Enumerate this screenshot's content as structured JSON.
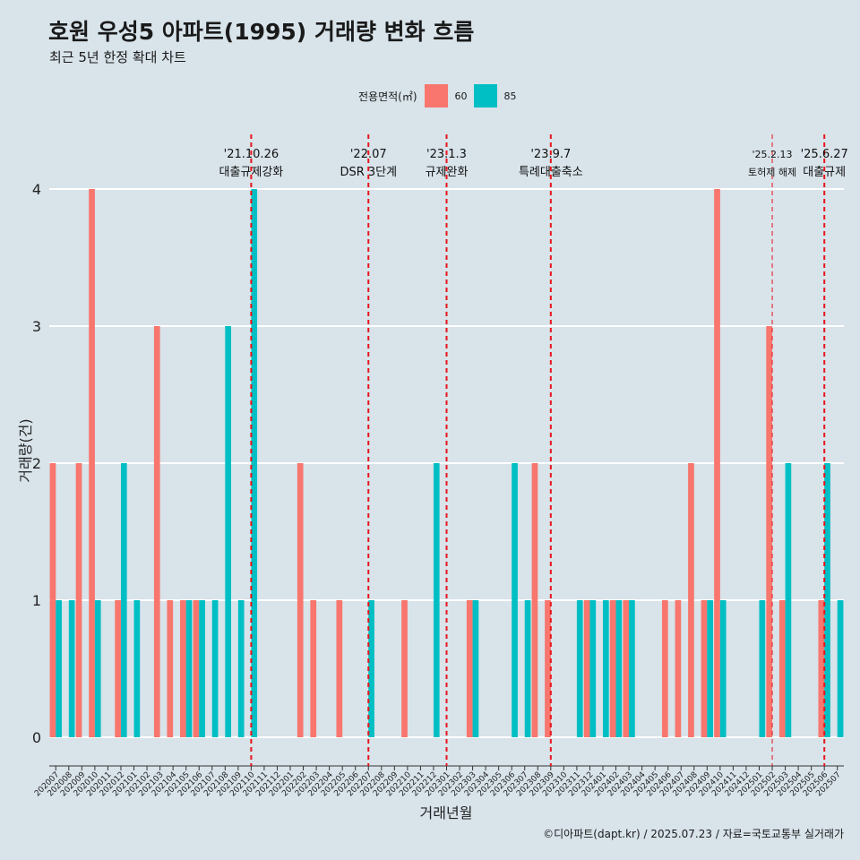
{
  "title": "호원 우성5 아파트(1995) 거래량 변화 흐름",
  "subtitle": "최근 5년 한정 확대 차트",
  "caption": "©디아파트(dapt.kr) / 2025.07.23 / 자료=국토교통부 실거래가",
  "legend": {
    "title": "전용면적(㎡)",
    "items": [
      {
        "label": "60",
        "color": "#f8766d"
      },
      {
        "label": "85",
        "color": "#00bfc4"
      }
    ]
  },
  "colors": {
    "background": "#d8e3ea",
    "grid": "#ffffff",
    "event_line": "#e8141a"
  },
  "chart_data": {
    "type": "bar",
    "xlabel": "거래년월",
    "ylabel": "거래량(건)",
    "ylim": [
      0,
      4
    ],
    "yticks": [
      0,
      1,
      2,
      3,
      4
    ],
    "categories": [
      "202007",
      "202008",
      "202009",
      "202010",
      "202011",
      "202012",
      "202101",
      "202102",
      "202103",
      "202104",
      "202105",
      "202106",
      "202107",
      "202108",
      "202109",
      "202110",
      "202111",
      "202112",
      "202201",
      "202202",
      "202203",
      "202204",
      "202205",
      "202206",
      "202207",
      "202208",
      "202209",
      "202210",
      "202211",
      "202212",
      "202301",
      "202302",
      "202303",
      "202304",
      "202305",
      "202306",
      "202307",
      "202308",
      "202309",
      "202310",
      "202311",
      "202312",
      "202401",
      "202402",
      "202403",
      "202404",
      "202405",
      "202406",
      "202407",
      "202408",
      "202409",
      "202410",
      "202411",
      "202412",
      "202501",
      "202502",
      "202503",
      "202504",
      "202505",
      "202506",
      "202507"
    ],
    "series": [
      {
        "name": "60",
        "color": "#f8766d",
        "values": [
          2,
          0,
          2,
          4,
          0,
          1,
          0,
          0,
          3,
          1,
          1,
          1,
          0,
          0,
          0,
          0,
          0,
          0,
          0,
          2,
          1,
          0,
          1,
          0,
          0,
          0,
          0,
          1,
          0,
          0,
          0,
          0,
          1,
          0,
          0,
          0,
          0,
          2,
          1,
          0,
          0,
          1,
          0,
          1,
          1,
          0,
          0,
          1,
          1,
          2,
          1,
          4,
          0,
          0,
          0,
          3,
          1,
          0,
          0,
          1,
          0
        ]
      },
      {
        "name": "85",
        "color": "#00bfc4",
        "values": [
          1,
          1,
          0,
          1,
          0,
          2,
          1,
          0,
          0,
          0,
          1,
          1,
          1,
          3,
          1,
          4,
          0,
          0,
          0,
          0,
          0,
          0,
          0,
          0,
          1,
          0,
          0,
          0,
          0,
          2,
          0,
          0,
          1,
          0,
          0,
          2,
          1,
          0,
          0,
          0,
          1,
          1,
          1,
          1,
          1,
          0,
          0,
          0,
          0,
          0,
          1,
          1,
          0,
          0,
          1,
          0,
          2,
          0,
          0,
          2,
          1
        ]
      }
    ],
    "events": [
      {
        "date": "'21.10.26",
        "label": "대출규제강화",
        "month": "202110"
      },
      {
        "date": "'22.07",
        "label": "DSR 3단계",
        "month": "202207"
      },
      {
        "date": "'23.1.3",
        "label": "규제완화",
        "month": "202301"
      },
      {
        "date": "'23.9.7",
        "label": "특례대출축소",
        "month": "202309"
      },
      {
        "date": "'25.2.13",
        "label": "토허제 해제",
        "month": "202502",
        "small": true
      },
      {
        "date": "'25.6.27",
        "label": "대출규제",
        "month": "202506"
      }
    ]
  }
}
